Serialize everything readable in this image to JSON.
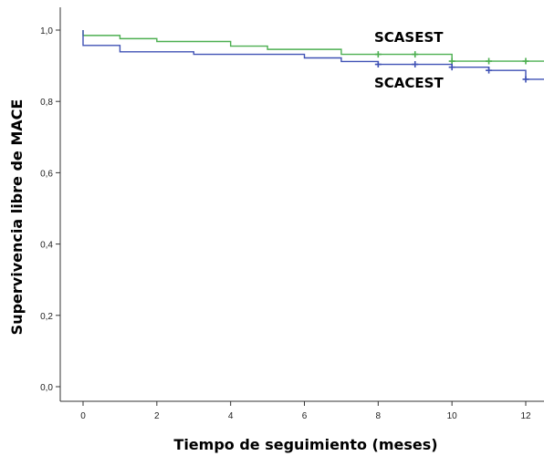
{
  "chart_data": {
    "type": "line",
    "subtype": "kaplan-meier step",
    "xlabel": "Tiempo de seguimiento (meses)",
    "ylabel": "Supervivencia libre de MACE",
    "xlim": [
      0,
      12.5
    ],
    "ylim": [
      0,
      1.05
    ],
    "x_ticks": [
      0,
      2,
      4,
      6,
      8,
      10,
      12
    ],
    "x_tick_labels": [
      "0",
      "2",
      "4",
      "6",
      "8",
      "10",
      "12"
    ],
    "y_ticks": [
      0,
      0.2,
      0.4,
      0.6,
      0.8,
      1.0
    ],
    "y_tick_labels": [
      "0,0",
      "0,2",
      "0,4",
      "0,6",
      "0,8",
      "1,0"
    ],
    "grid": false,
    "series": [
      {
        "name": "SCASEST",
        "color": "#4caf50",
        "steps": [
          [
            0,
            0.985
          ],
          [
            1,
            0.976
          ],
          [
            2,
            0.968
          ],
          [
            4,
            0.955
          ],
          [
            5,
            0.946
          ],
          [
            7,
            0.932
          ],
          [
            10,
            0.913
          ],
          [
            12.5,
            0.913
          ]
        ],
        "censored": [
          [
            8,
            0.932
          ],
          [
            9,
            0.932
          ],
          [
            10,
            0.913
          ],
          [
            11,
            0.913
          ],
          [
            12,
            0.913
          ]
        ]
      },
      {
        "name": "SCACEST",
        "color": "#3f51b5",
        "steps": [
          [
            0,
            0.957
          ],
          [
            1,
            0.939
          ],
          [
            3,
            0.932
          ],
          [
            6,
            0.922
          ],
          [
            7,
            0.912
          ],
          [
            8,
            0.904
          ],
          [
            10,
            0.896
          ],
          [
            11,
            0.887
          ],
          [
            12,
            0.862
          ],
          [
            12.5,
            0.862
          ]
        ],
        "censored": [
          [
            8,
            0.904
          ],
          [
            9,
            0.904
          ],
          [
            10,
            0.896
          ],
          [
            11,
            0.887
          ],
          [
            12,
            0.862
          ]
        ]
      }
    ]
  }
}
